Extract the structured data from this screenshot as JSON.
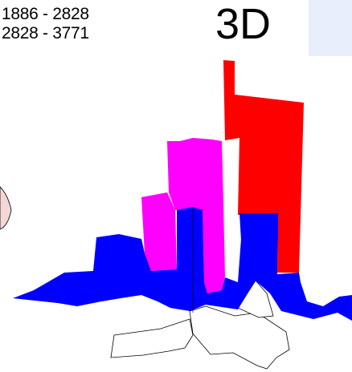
{
  "legend": {
    "rows": [
      "1886 - 2828",
      "2828 - 3771"
    ]
  },
  "title": "3D",
  "map": {
    "colors": {
      "high": "#ff0000",
      "upper_mid": "#ff00ff",
      "mid": "#0000ff",
      "base": "#ffffff",
      "partial_feature": "#f3d6d6",
      "outline": "#000000",
      "panel": "#e9eefc"
    }
  }
}
